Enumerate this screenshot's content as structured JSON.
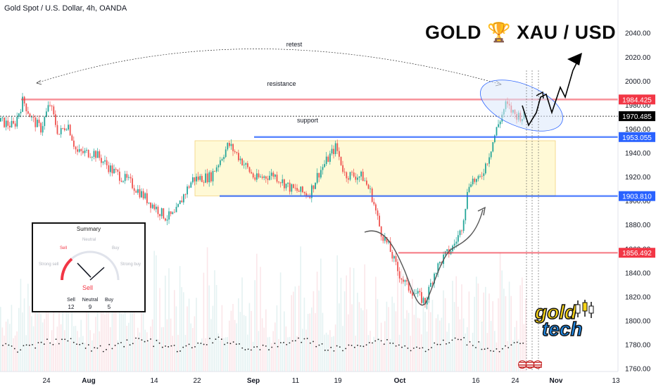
{
  "header": {
    "symbol": "Gold Spot / U.S. Dollar, 4h, OANDA"
  },
  "headline": {
    "text": "GOLD 🏆 XAU / USD"
  },
  "chart_data": {
    "type": "candlestick",
    "ylim": [
      1750,
      2050
    ],
    "y_ticks": [
      1760,
      1780,
      1800,
      1820,
      1840,
      1860,
      1880,
      1900,
      1920,
      1940,
      1960,
      1980,
      2000,
      2020,
      2040
    ],
    "x_ticks": [
      "24",
      "Aug",
      "14",
      "22",
      "Sep",
      "11",
      "19",
      "Oct",
      "16",
      "24",
      "Nov",
      "13"
    ],
    "price_path": [
      {
        "x": 0.0,
        "y": 1966
      },
      {
        "x": 1.5,
        "y": 1962
      },
      {
        "x": 2.5,
        "y": 1984
      },
      {
        "x": 3.5,
        "y": 1968
      },
      {
        "x": 4.5,
        "y": 1960
      },
      {
        "x": 5.5,
        "y": 1981
      },
      {
        "x": 6.5,
        "y": 1955
      },
      {
        "x": 7.5,
        "y": 1965
      },
      {
        "x": 8.5,
        "y": 1940
      },
      {
        "x": 10.5,
        "y": 1940
      },
      {
        "x": 12.5,
        "y": 1925
      },
      {
        "x": 14.5,
        "y": 1915
      },
      {
        "x": 16.5,
        "y": 1900
      },
      {
        "x": 18.5,
        "y": 1886
      },
      {
        "x": 19.5,
        "y": 1888
      },
      {
        "x": 20.5,
        "y": 1905
      },
      {
        "x": 21.5,
        "y": 1918
      },
      {
        "x": 23.5,
        "y": 1920
      },
      {
        "x": 25.5,
        "y": 1947
      },
      {
        "x": 26.5,
        "y": 1938
      },
      {
        "x": 28.5,
        "y": 1918
      },
      {
        "x": 30.5,
        "y": 1922
      },
      {
        "x": 32.5,
        "y": 1910
      },
      {
        "x": 34.5,
        "y": 1905
      },
      {
        "x": 35.5,
        "y": 1922
      },
      {
        "x": 37.5,
        "y": 1945
      },
      {
        "x": 38.5,
        "y": 1922
      },
      {
        "x": 40.5,
        "y": 1920
      },
      {
        "x": 41.5,
        "y": 1905
      },
      {
        "x": 42.5,
        "y": 1875
      },
      {
        "x": 43.5,
        "y": 1860
      },
      {
        "x": 44.5,
        "y": 1840
      },
      {
        "x": 45.5,
        "y": 1828
      },
      {
        "x": 46.5,
        "y": 1822
      },
      {
        "x": 47.5,
        "y": 1815
      },
      {
        "x": 48.5,
        "y": 1840
      },
      {
        "x": 49.5,
        "y": 1852
      },
      {
        "x": 50.5,
        "y": 1860
      },
      {
        "x": 51.5,
        "y": 1875
      },
      {
        "x": 52.5,
        "y": 1918
      },
      {
        "x": 53.5,
        "y": 1916
      },
      {
        "x": 54.5,
        "y": 1935
      },
      {
        "x": 55.5,
        "y": 1960
      },
      {
        "x": 56.5,
        "y": 1980
      },
      {
        "x": 57.5,
        "y": 1972
      },
      {
        "x": 58.5,
        "y": 1970
      }
    ],
    "levels": [
      {
        "name": "resistance",
        "value": 1984.425,
        "label": "1984.425",
        "color": "#f23645"
      },
      {
        "name": "current",
        "value": 1970.485,
        "label": "1970.485",
        "color": "#000000"
      },
      {
        "name": "support",
        "value": 1953.055,
        "label": "1953.055",
        "color": "#2962ff"
      },
      {
        "name": "lower",
        "value": 1903.81,
        "label": "1903.810",
        "color": "#2962ff"
      },
      {
        "name": "low-resistance",
        "value": 1856.492,
        "label": "1856.492",
        "color": "#f23645"
      }
    ],
    "range_box": {
      "y_low": 1904,
      "y_high": 1950
    },
    "annotations": [
      "retest",
      "resistance",
      "support"
    ],
    "colors": {
      "up": "#26a69a",
      "down": "#ef5350"
    }
  },
  "summary": {
    "title": "Summary",
    "labels": {
      "strong_sell": "Strong sell",
      "sell": "Sell",
      "neutral": "Neutral",
      "buy": "Buy",
      "strong_buy": "Strong buy"
    },
    "signal": "Sell",
    "counts": [
      {
        "label": "Sell",
        "value": "12"
      },
      {
        "label": "Neutral",
        "value": "9"
      },
      {
        "label": "Buy",
        "value": "5"
      }
    ]
  },
  "logo": {
    "line1": "gold",
    "line2": "tech"
  }
}
